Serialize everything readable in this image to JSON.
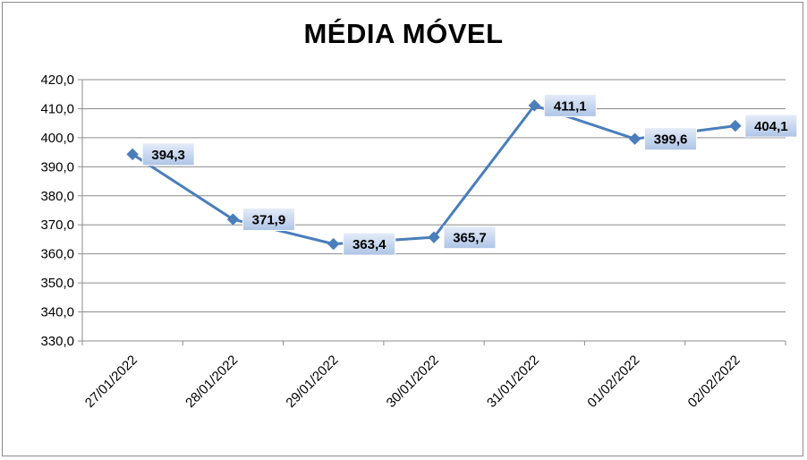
{
  "chart_data": {
    "type": "line",
    "title": "MÉDIA MÓVEL",
    "categories": [
      "27/01/2022",
      "28/01/2022",
      "29/01/2022",
      "30/01/2022",
      "31/01/2022",
      "01/02/2022",
      "02/02/2022"
    ],
    "series": [
      {
        "values": [
          394.3,
          371.9,
          363.4,
          365.7,
          411.1,
          399.6,
          404.1
        ]
      }
    ],
    "data_labels": [
      "394,3",
      "371,9",
      "363,4",
      "365,7",
      "411,1",
      "399,6",
      "404,1"
    ],
    "ylim": [
      330,
      420
    ],
    "y_ticks": [
      330,
      340,
      350,
      360,
      370,
      380,
      390,
      400,
      410,
      420
    ],
    "y_tick_labels": [
      "330,0",
      "340,0",
      "350,0",
      "360,0",
      "370,0",
      "380,0",
      "390,0",
      "400,0",
      "410,0",
      "420,0"
    ],
    "xlabel": "",
    "ylabel": "",
    "grid": true,
    "legend": "none",
    "line_color": "#4a7ebb",
    "label_box_color": "#c6d5ee"
  }
}
